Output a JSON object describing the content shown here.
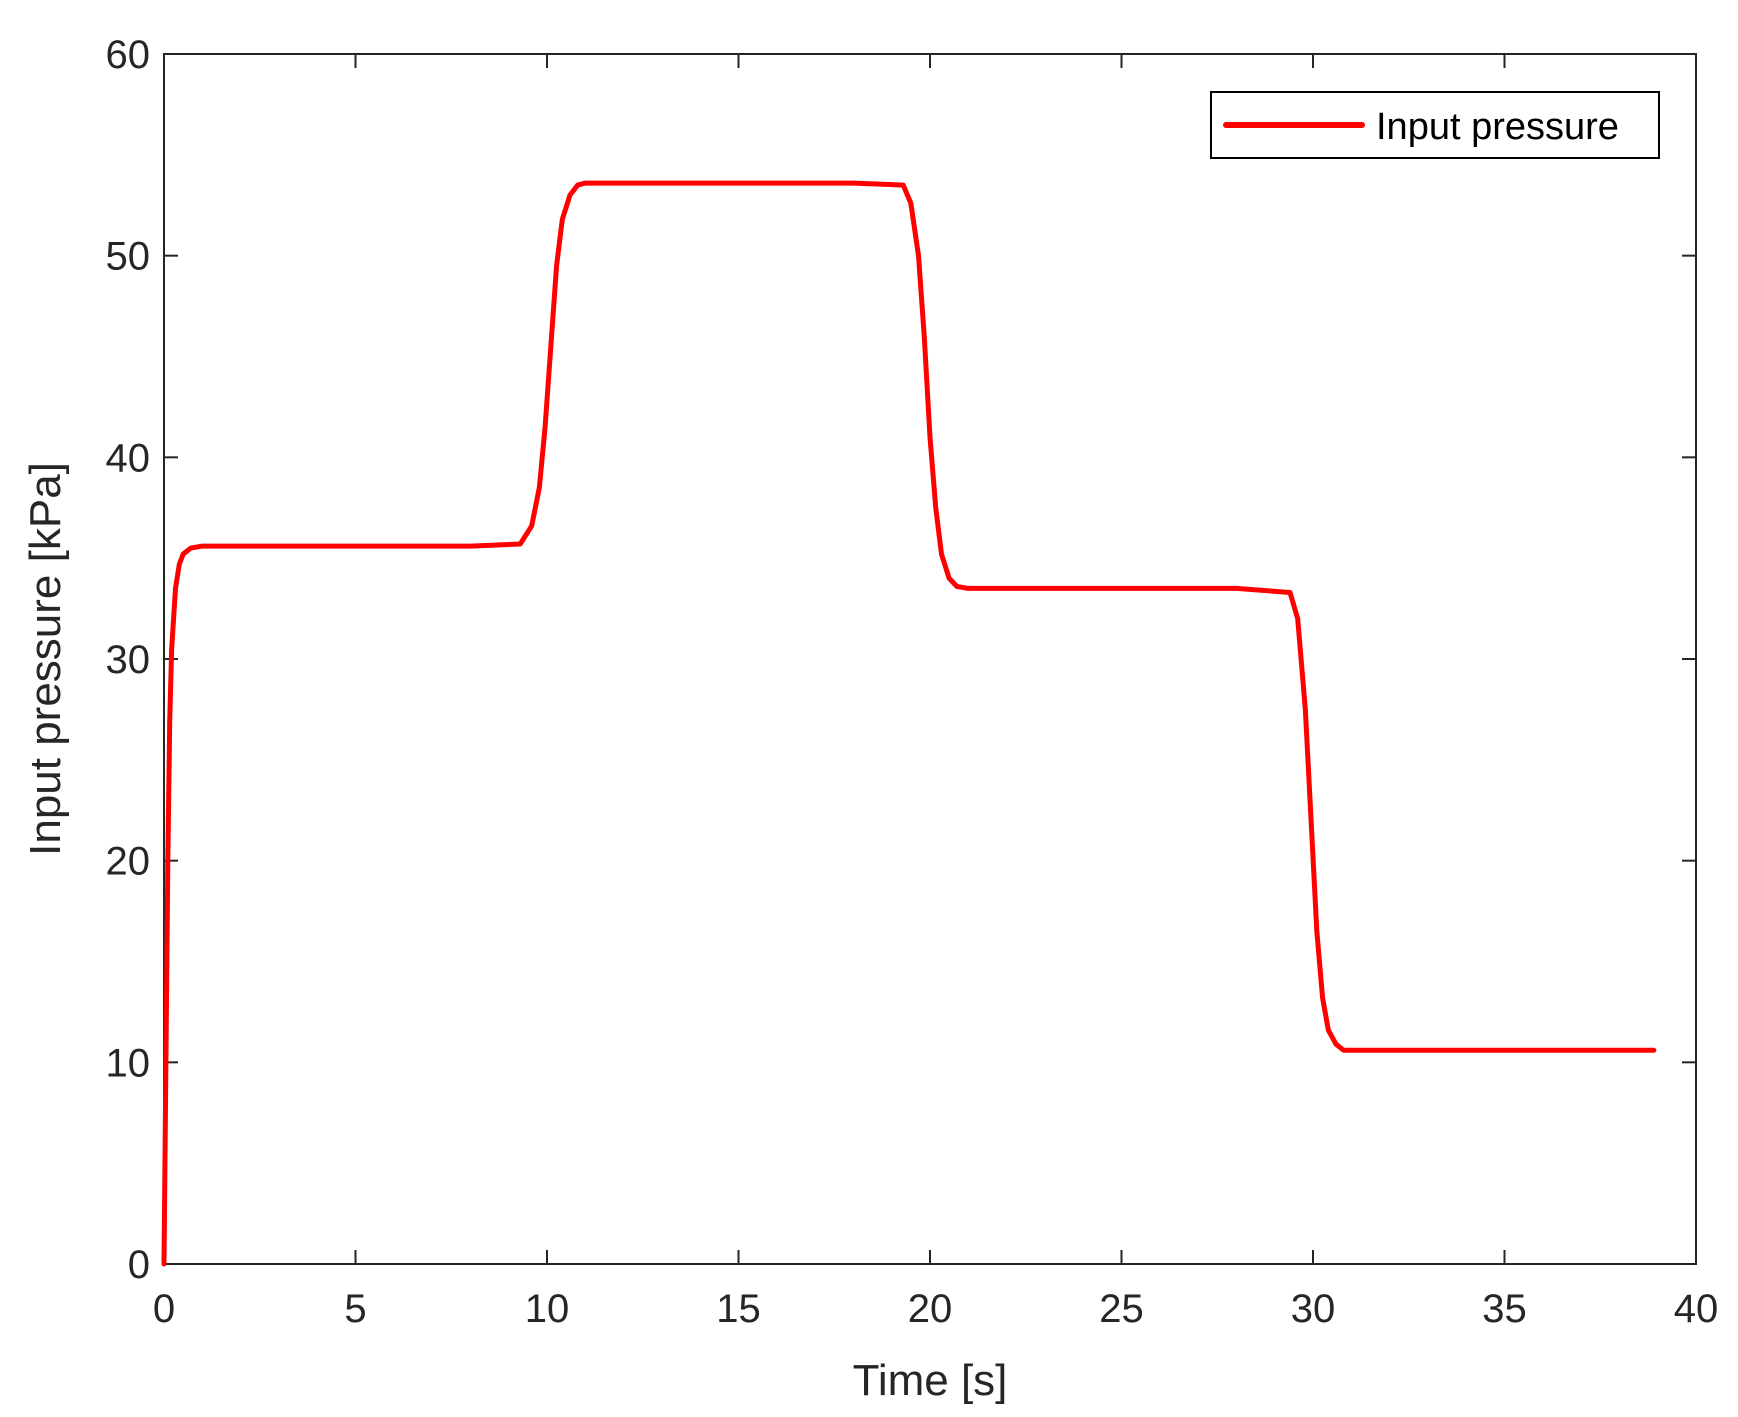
{
  "chart_data": {
    "type": "line",
    "title": "",
    "xlabel": "Time [s]",
    "ylabel": "Input pressure [kPa]",
    "xlim": [
      0,
      40
    ],
    "ylim": [
      0,
      60
    ],
    "xticks": [
      0,
      5,
      10,
      15,
      20,
      25,
      30,
      35,
      40
    ],
    "yticks": [
      0,
      10,
      20,
      30,
      40,
      50,
      60
    ],
    "grid": false,
    "legend_position": "top-right",
    "series": [
      {
        "name": "Input pressure",
        "color": "#ff0000",
        "x": [
          0,
          0.05,
          0.1,
          0.15,
          0.2,
          0.3,
          0.4,
          0.5,
          0.7,
          1.0,
          2,
          5,
          8,
          9.3,
          9.6,
          9.8,
          9.95,
          10.1,
          10.25,
          10.4,
          10.6,
          10.8,
          11.0,
          12,
          15,
          18,
          19.3,
          19.5,
          19.7,
          19.85,
          20.0,
          20.15,
          20.3,
          20.5,
          20.7,
          21.0,
          22,
          25,
          28,
          29.4,
          29.6,
          29.8,
          29.95,
          30.1,
          30.25,
          30.4,
          30.6,
          30.8,
          31.0,
          33,
          35,
          37,
          38.9
        ],
        "y": [
          0,
          10,
          20,
          27,
          30.5,
          33.5,
          34.7,
          35.2,
          35.5,
          35.6,
          35.6,
          35.6,
          35.6,
          35.7,
          36.6,
          38.5,
          41.5,
          45.5,
          49.5,
          51.8,
          53.0,
          53.5,
          53.6,
          53.6,
          53.6,
          53.6,
          53.5,
          52.6,
          50.0,
          46.0,
          41.0,
          37.5,
          35.2,
          34.0,
          33.6,
          33.5,
          33.5,
          33.5,
          33.5,
          33.3,
          32.0,
          27.5,
          22.0,
          16.5,
          13.2,
          11.6,
          10.9,
          10.6,
          10.6,
          10.6,
          10.6,
          10.6,
          10.6
        ]
      }
    ]
  }
}
